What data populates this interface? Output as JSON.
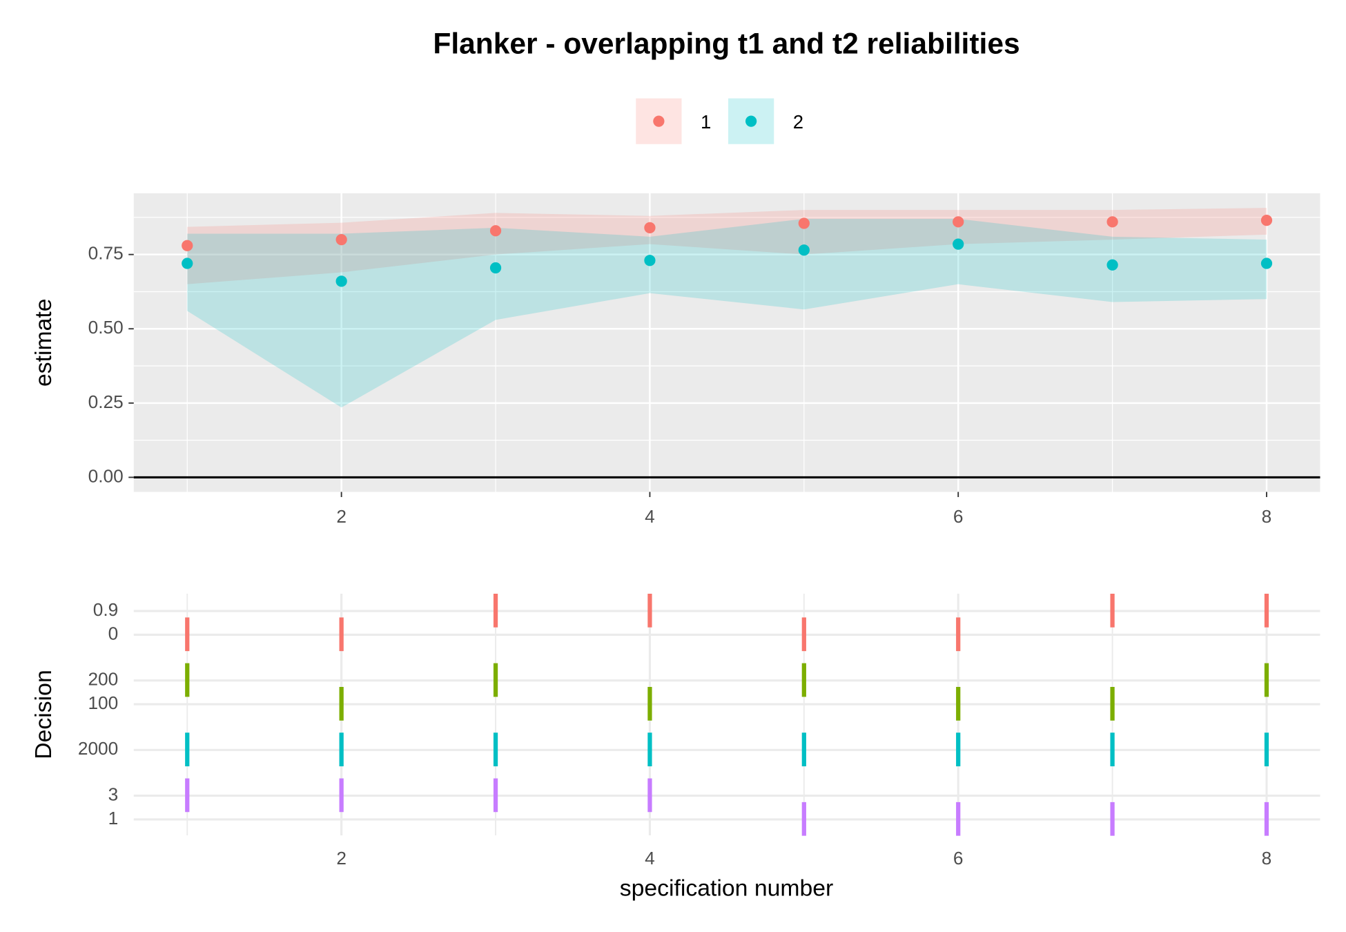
{
  "chart_data": [
    {
      "type": "scatter",
      "title": "Flanker - overlapping t1 and t2 reliabilities",
      "ylabel": "estimate",
      "x": [
        1,
        2,
        3,
        4,
        5,
        6,
        7,
        8
      ],
      "series": [
        {
          "name": "1",
          "color": "#F8766D",
          "values": [
            0.78,
            0.8,
            0.83,
            0.84,
            0.855,
            0.86,
            0.86,
            0.865
          ],
          "lower": [
            0.65,
            0.69,
            0.75,
            0.785,
            0.75,
            0.785,
            0.8,
            0.817
          ],
          "upper": [
            0.843,
            0.857,
            0.89,
            0.88,
            0.9,
            0.9,
            0.9,
            0.907
          ]
        },
        {
          "name": "2",
          "color": "#00BFC4",
          "values": [
            0.72,
            0.66,
            0.705,
            0.73,
            0.765,
            0.785,
            0.715,
            0.72
          ],
          "lower": [
            0.56,
            0.235,
            0.53,
            0.62,
            0.565,
            0.65,
            0.59,
            0.6
          ],
          "upper": [
            0.82,
            0.82,
            0.84,
            0.81,
            0.87,
            0.87,
            0.81,
            0.8
          ]
        }
      ],
      "xlim": [
        0.653,
        8.347
      ],
      "xticks": [
        2,
        4,
        6,
        8
      ],
      "ylim": [
        -0.049,
        0.956
      ],
      "yticks": [
        {
          "value": 0,
          "label": "0.00"
        },
        {
          "value": 0.25,
          "label": "0.25"
        },
        {
          "value": 0.5,
          "label": "0.50"
        },
        {
          "value": 0.75,
          "label": "0.75"
        }
      ],
      "hline": 0,
      "legend": "top",
      "grid": true
    },
    {
      "type": "strip",
      "ylabel": "Decision",
      "xlabel": "specification number",
      "x": [
        1,
        2,
        3,
        4,
        5,
        6,
        7,
        8
      ],
      "categories": [
        "0.9",
        "0",
        "200",
        "100",
        "2000",
        "3",
        "1"
      ],
      "series": [
        {
          "color": "#F8766D",
          "values": [
            "0",
            "0",
            "0.9",
            "0.9",
            "0",
            "0",
            "0.9",
            "0.9"
          ]
        },
        {
          "color": "#7CAE00",
          "values": [
            "200",
            "100",
            "200",
            "100",
            "200",
            "100",
            "100",
            "200"
          ]
        },
        {
          "color": "#00BFC4",
          "values": [
            "2000",
            "2000",
            "2000",
            "2000",
            "2000",
            "2000",
            "2000",
            "2000"
          ]
        },
        {
          "color": "#C77CFF",
          "values": [
            "3",
            "3",
            "3",
            "3",
            "1",
            "1",
            "1",
            "1"
          ]
        }
      ],
      "xlim": [
        0.653,
        8.347
      ],
      "xticks": [
        2,
        4,
        6,
        8
      ],
      "grid": true
    }
  ]
}
